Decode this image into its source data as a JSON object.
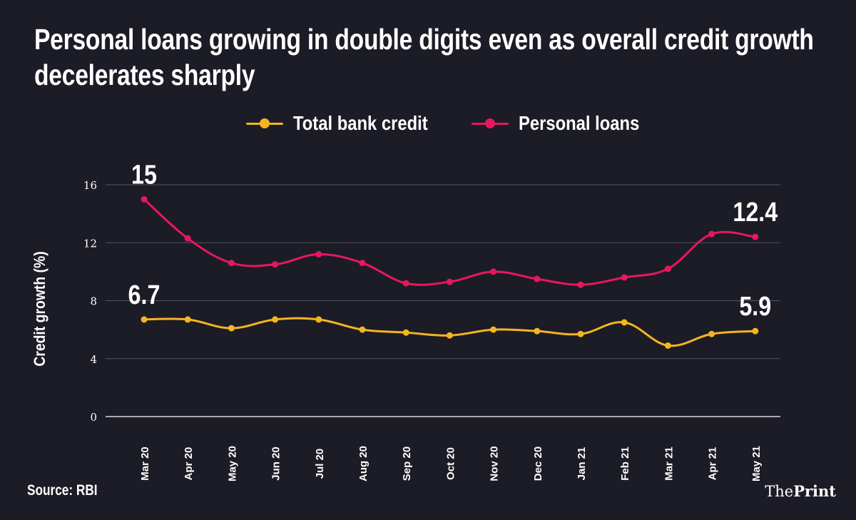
{
  "colors": {
    "background": "#1c1c26",
    "total_bank_credit": "#f5b521",
    "personal_loans": "#e8175d",
    "grid": "#555560",
    "text": "#ffffff"
  },
  "header": {
    "title": "Personal loans growing in double digits even as overall credit growth decelerates sharply"
  },
  "footer": {
    "source": "Source: RBI",
    "logo_the": "The",
    "logo_print": "Print"
  },
  "chart_data": {
    "type": "line",
    "title": "Personal loans growing in double digits even as overall credit growth decelerates sharply",
    "xlabel": "",
    "ylabel": "Credit growth (%)",
    "ylim": [
      0,
      16
    ],
    "yticks": [
      0,
      4,
      8,
      12,
      16
    ],
    "grid": true,
    "legend_position": "top-center",
    "categories": [
      "Mar 20",
      "Apr 20",
      "May 20",
      "Jun 20",
      "Jul 20",
      "Aug 20",
      "Sep 20",
      "Oct 20",
      "Nov 20",
      "Dec 20",
      "Jan 21",
      "Feb 21",
      "Mar 21",
      "Apr 21",
      "May 21"
    ],
    "series": [
      {
        "name": "Total bank credit",
        "color": "#f5b521",
        "values": [
          6.7,
          6.7,
          6.1,
          6.7,
          6.7,
          6.0,
          5.8,
          5.6,
          6.0,
          5.9,
          5.7,
          6.5,
          4.9,
          5.7,
          5.9
        ]
      },
      {
        "name": "Personal loans",
        "color": "#e8175d",
        "values": [
          15.0,
          12.3,
          10.6,
          10.5,
          11.2,
          10.6,
          9.2,
          9.3,
          10.0,
          9.5,
          9.1,
          9.6,
          10.2,
          12.6,
          12.4
        ]
      }
    ],
    "annotations": [
      {
        "text": "15",
        "series": "Personal loans",
        "index": 0
      },
      {
        "text": "12.4",
        "series": "Personal loans",
        "index": 14
      },
      {
        "text": "6.7",
        "series": "Total bank credit",
        "index": 0
      },
      {
        "text": "5.9",
        "series": "Total bank credit",
        "index": 14
      }
    ]
  }
}
